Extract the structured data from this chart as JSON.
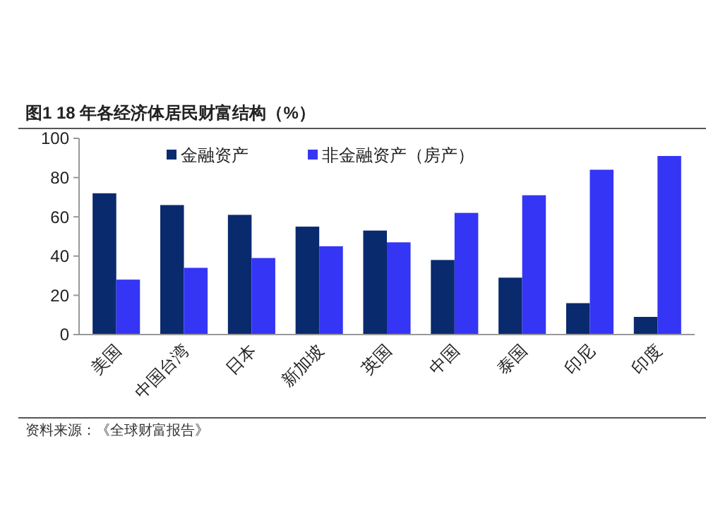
{
  "chart_data": {
    "type": "bar",
    "title": "图1  18 年各经济体居民财富结构（%）",
    "categories": [
      "美国",
      "中国台湾",
      "日本",
      "新加坡",
      "英国",
      "中国",
      "泰国",
      "印尼",
      "印度"
    ],
    "series": [
      {
        "name": "金融资产",
        "color": "#0a2a6e",
        "values": [
          72,
          66,
          61,
          55,
          53,
          38,
          29,
          16,
          9
        ]
      },
      {
        "name": "非金融资产（房产）",
        "color": "#3535f5",
        "values": [
          28,
          34,
          39,
          45,
          47,
          62,
          71,
          84,
          91
        ]
      }
    ],
    "ylim": [
      0,
      100
    ],
    "yticks": [
      0,
      20,
      40,
      60,
      80,
      100
    ],
    "grid": false,
    "legend": "top",
    "annotations": [
      "资料来源：《全球财富报告》"
    ]
  }
}
